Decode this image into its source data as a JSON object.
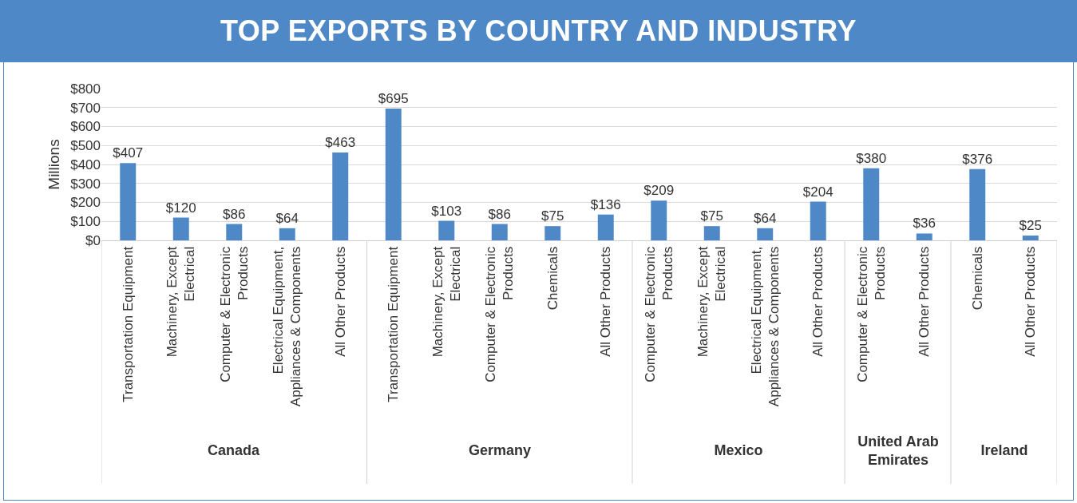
{
  "chart_data": {
    "type": "bar",
    "title": "TOP EXPORTS BY COUNTRY AND INDUSTRY",
    "ylabel": "Millions",
    "categories": [
      "Transportation Equipment",
      "Machinery, Except Electrical",
      "Computer & Electronic Products",
      "Electrical Equipment, Appliances & Components",
      "All Other Products",
      "Transportation Equipment",
      "Machinery, Except Electrical",
      "Computer & Electronic Products",
      "Chemicals",
      "All Other Products",
      "Computer & Electronic Products",
      "Machinery, Except Electrical",
      "Electrical Equipment, Appliances & Components",
      "All Other Products",
      "Computer & Electronic Products",
      "All Other Products",
      "Chemicals",
      "All Other Products"
    ],
    "values": [
      407,
      120,
      86,
      64,
      463,
      695,
      103,
      86,
      75,
      136,
      209,
      75,
      64,
      204,
      380,
      36,
      376,
      25
    ],
    "value_labels": [
      "$407",
      "$120",
      "$86",
      "$64",
      "$463",
      "$695",
      "$103",
      "$86",
      "$75",
      "$136",
      "$209",
      "$75",
      "$64",
      "$204",
      "$380",
      "$36",
      "$376",
      "$25"
    ],
    "color": "#4e88c7",
    "ylim": [
      0,
      800
    ],
    "yticks": [
      {
        "value": 0,
        "label": "$0"
      },
      {
        "value": 100,
        "label": "$100"
      },
      {
        "value": 200,
        "label": "$200"
      },
      {
        "value": 300,
        "label": "$300"
      },
      {
        "value": 400,
        "label": "$400"
      },
      {
        "value": 500,
        "label": "$500"
      },
      {
        "value": 600,
        "label": "$600"
      },
      {
        "value": 700,
        "label": "$700"
      },
      {
        "value": 800,
        "label": "$800"
      }
    ],
    "grid": "y",
    "annotations": [
      "Canada",
      "Germany",
      "Mexico",
      "United Arab Emirates",
      "Ireland"
    ]
  }
}
